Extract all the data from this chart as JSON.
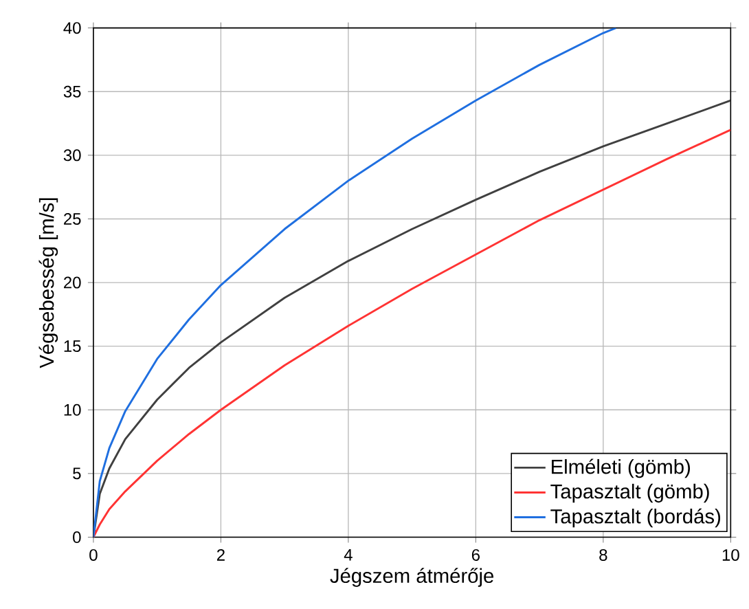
{
  "chart_data": {
    "type": "line",
    "xlabel": "Jégszem átmérője",
    "ylabel": "Végsebesség [m/s]",
    "xlim": [
      0,
      10
    ],
    "ylim": [
      0,
      40
    ],
    "xticks": [
      0,
      2,
      4,
      6,
      8,
      10
    ],
    "yticks": [
      0,
      5,
      10,
      15,
      20,
      25,
      30,
      35,
      40
    ],
    "grid": true,
    "legend": "bottom right",
    "series": [
      {
        "name": "Elméleti (gömb)",
        "color": "#404040",
        "x": [
          0,
          0.1,
          0.25,
          0.5,
          1,
          1.5,
          2,
          3,
          4,
          5,
          6,
          7,
          8,
          9,
          10
        ],
        "values": [
          0,
          3.4,
          5.4,
          7.7,
          10.8,
          13.3,
          15.3,
          18.8,
          21.7,
          24.2,
          26.5,
          28.7,
          30.7,
          32.5,
          34.3
        ]
      },
      {
        "name": "Tapasztalt (gömb)",
        "color": "#ff3333",
        "x": [
          0,
          0.1,
          0.25,
          0.5,
          1,
          1.5,
          2,
          3,
          4,
          5,
          6,
          7,
          8,
          9,
          10
        ],
        "values": [
          0,
          1.0,
          2.2,
          3.6,
          6.0,
          8.1,
          10.0,
          13.5,
          16.6,
          19.5,
          22.2,
          24.9,
          27.3,
          29.7,
          32.0
        ]
      },
      {
        "name": "Tapasztalt (bordás)",
        "color": "#1f6fe0",
        "x": [
          0,
          0.1,
          0.25,
          0.5,
          1,
          1.5,
          2,
          3,
          4,
          5,
          6,
          7,
          8,
          8.2
        ],
        "values": [
          0,
          4.4,
          7.0,
          9.9,
          14.0,
          17.1,
          19.8,
          24.2,
          28.0,
          31.3,
          34.3,
          37.1,
          39.6,
          40
        ]
      }
    ]
  }
}
